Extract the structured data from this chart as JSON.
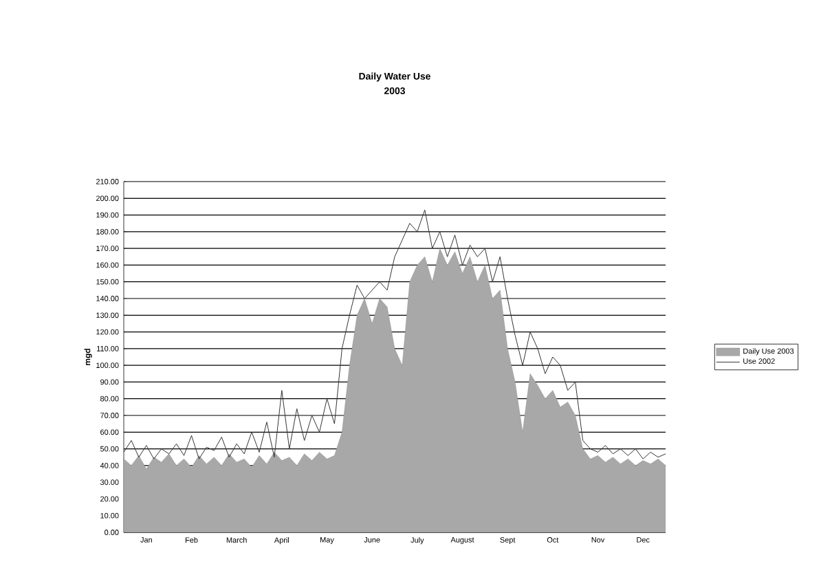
{
  "chart_data": {
    "type": "area",
    "title": "Daily Water Use",
    "subtitle": "2003",
    "ylabel": "mgd",
    "categories": [
      null,
      null,
      null,
      "Jan",
      null,
      null,
      null,
      null,
      null,
      "Feb",
      null,
      null,
      null,
      null,
      null,
      "March",
      null,
      null,
      null,
      null,
      null,
      "April",
      null,
      null,
      null,
      null,
      null,
      "May",
      null,
      null,
      null,
      null,
      null,
      "June",
      null,
      null,
      null,
      null,
      null,
      "July",
      null,
      null,
      null,
      null,
      null,
      "August",
      null,
      null,
      null,
      null,
      null,
      "Sept",
      null,
      null,
      null,
      null,
      null,
      "Oct",
      null,
      null,
      null,
      null,
      null,
      "Nov",
      null,
      null,
      null,
      null,
      null,
      "Dec",
      null,
      null,
      null
    ],
    "ylim": [
      0,
      210
    ],
    "yticks": [
      {
        "value": 0,
        "label": "0.00"
      },
      {
        "value": 10,
        "label": "10.00"
      },
      {
        "value": 20,
        "label": "20.00"
      },
      {
        "value": 30,
        "label": "30.00"
      },
      {
        "value": 40,
        "label": "40.00"
      },
      {
        "value": 50,
        "label": "50.00"
      },
      {
        "value": 60,
        "label": "60.00"
      },
      {
        "value": 70,
        "label": "70.00"
      },
      {
        "value": 80,
        "label": "80.00"
      },
      {
        "value": 90,
        "label": "90.00"
      },
      {
        "value": 100,
        "label": "100.00"
      },
      {
        "value": 110,
        "label": "110.00"
      },
      {
        "value": 120,
        "label": "120.00"
      },
      {
        "value": 130,
        "label": "130.00"
      },
      {
        "value": 140,
        "label": "140.00"
      },
      {
        "value": 150,
        "label": "150.00"
      },
      {
        "value": 160,
        "label": "160.00"
      },
      {
        "value": 170,
        "label": "170.00"
      },
      {
        "value": 180,
        "label": "180.00"
      },
      {
        "value": 190,
        "label": "190.00"
      },
      {
        "value": 200,
        "label": "200.00"
      },
      {
        "value": 210,
        "label": "210.00"
      }
    ],
    "grid": "y",
    "legend": "right",
    "series": [
      {
        "name": "Daily Use 2003",
        "color": "#a8a8a8",
        "values": [
          44,
          40,
          46,
          38,
          45,
          42,
          47,
          40,
          44,
          39,
          46,
          41,
          45,
          40,
          47,
          42,
          44,
          39,
          46,
          41,
          48,
          43,
          45,
          40,
          47,
          43,
          48,
          44,
          46,
          60,
          100,
          130,
          140,
          125,
          140,
          135,
          110,
          100,
          150,
          160,
          165,
          150,
          170,
          160,
          168,
          155,
          165,
          150,
          160,
          140,
          145,
          110,
          90,
          60,
          95,
          88,
          80,
          85,
          75,
          78,
          70,
          50,
          44,
          46,
          42,
          45,
          41,
          44,
          40,
          43,
          41,
          44,
          40
        ]
      },
      {
        "name": "Use 2002",
        "type": "line",
        "color": "#333333",
        "values": [
          48,
          55,
          45,
          52,
          44,
          50,
          47,
          53,
          46,
          58,
          44,
          51,
          49,
          57,
          45,
          53,
          47,
          60,
          48,
          66,
          45,
          85,
          50,
          74,
          55,
          70,
          60,
          80,
          65,
          110,
          130,
          148,
          140,
          145,
          150,
          145,
          165,
          175,
          185,
          180,
          193,
          170,
          180,
          165,
          178,
          160,
          172,
          165,
          170,
          150,
          165,
          140,
          118,
          100,
          120,
          110,
          95,
          105,
          100,
          85,
          90,
          55,
          50,
          48,
          52,
          47,
          50,
          46,
          50,
          44,
          48,
          45,
          47
        ]
      }
    ]
  }
}
